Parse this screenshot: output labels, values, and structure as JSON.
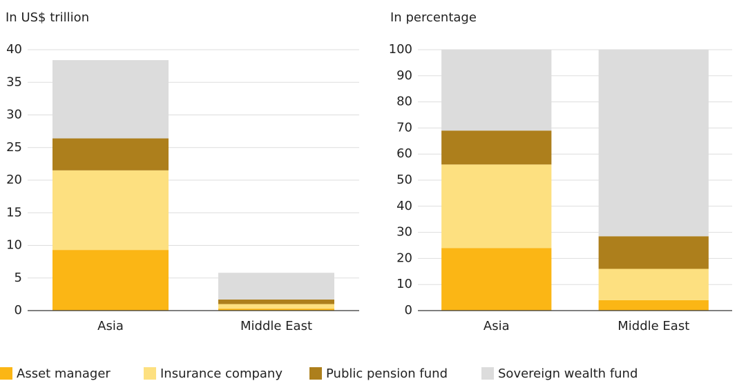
{
  "chart_data": [
    {
      "type": "bar",
      "stacked": true,
      "title": "In US$ trillion",
      "categories": [
        "Asia",
        "Middle East"
      ],
      "series": [
        {
          "name": "Asset manager",
          "color": "#fbb615",
          "values": [
            9.3,
            0.3
          ]
        },
        {
          "name": "Insurance company",
          "color": "#fde080",
          "values": [
            12.2,
            0.7
          ]
        },
        {
          "name": "Public pension fund",
          "color": "#ad7f1c",
          "values": [
            4.9,
            0.7
          ]
        },
        {
          "name": "Sovereign wealth fund",
          "color": "#dcdcdc",
          "values": [
            12.0,
            4.1
          ]
        }
      ],
      "ylim": [
        0,
        40
      ],
      "yticks": [
        0,
        5,
        10,
        15,
        20,
        25,
        30,
        35,
        40
      ],
      "grid": true
    },
    {
      "type": "bar",
      "stacked": true,
      "title": "In percentage",
      "categories": [
        "Asia",
        "Middle East"
      ],
      "series": [
        {
          "values": [
            24,
            4
          ]
        },
        {
          "values": [
            32,
            12
          ]
        },
        {
          "values": [
            13,
            12.5
          ]
        },
        {
          "values": [
            31,
            71.5
          ]
        }
      ],
      "ylim": [
        0,
        100
      ],
      "yticks": [
        0,
        10,
        20,
        30,
        40,
        50,
        60,
        70,
        80,
        90,
        100
      ],
      "grid": true
    }
  ]
}
